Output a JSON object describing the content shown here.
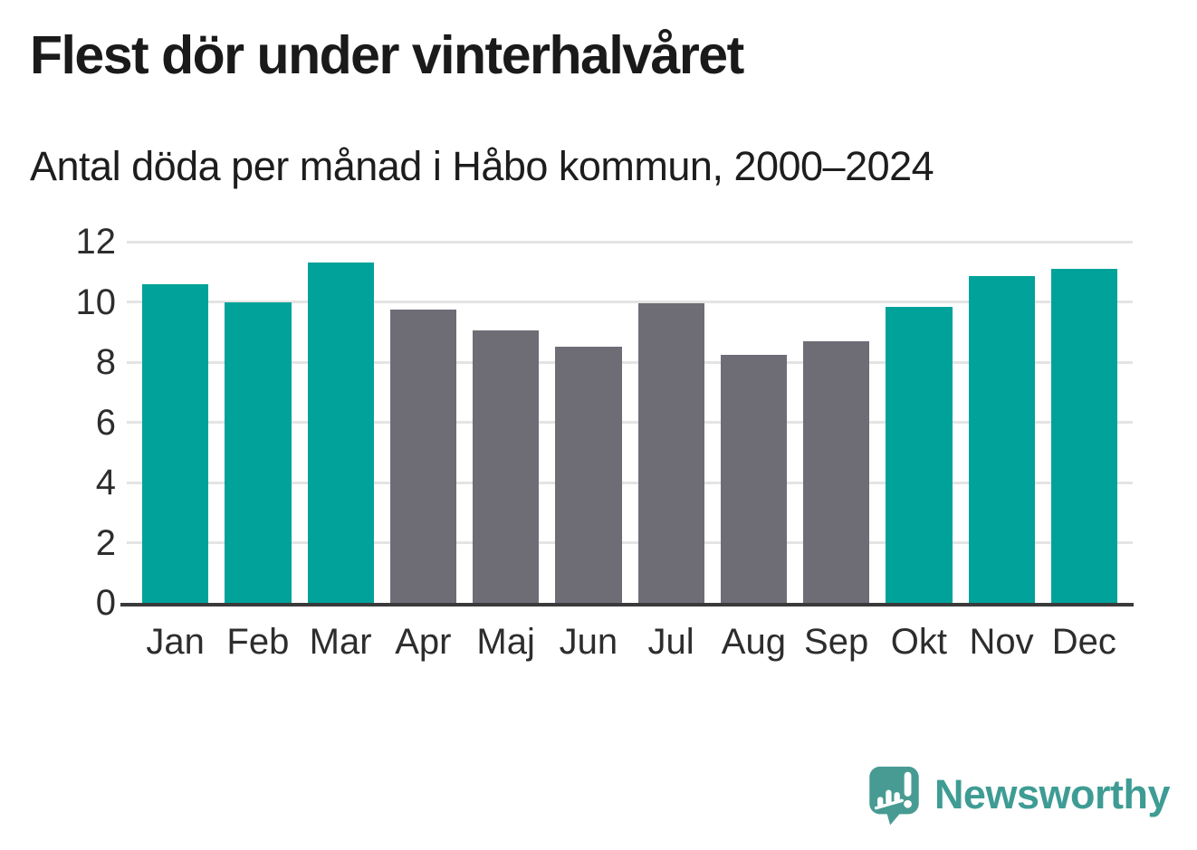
{
  "header": {
    "title": "Flest dör under vinterhalvåret",
    "subtitle": "Antal döda per månad i Håbo kommun, 2000–2024"
  },
  "chart_data": {
    "type": "bar",
    "title": "Flest dör under vinterhalvåret",
    "subtitle": "Antal döda per månad i Håbo kommun, 2000–2024",
    "categories": [
      "Jan",
      "Feb",
      "Mar",
      "Apr",
      "Maj",
      "Jun",
      "Jul",
      "Aug",
      "Sep",
      "Okt",
      "Nov",
      "Dec"
    ],
    "values": [
      10.6,
      10.0,
      11.3,
      9.75,
      9.05,
      8.5,
      9.95,
      8.25,
      8.7,
      9.85,
      10.85,
      11.1
    ],
    "bar_colors": [
      "winter",
      "winter",
      "winter",
      "summer",
      "summer",
      "summer",
      "summer",
      "summer",
      "summer",
      "winter",
      "winter",
      "winter"
    ],
    "palette": {
      "winter": "#00a29a",
      "summer": "#6e6d76"
    },
    "xlabel": "",
    "ylabel": "",
    "ylim": [
      0,
      12
    ],
    "yticks": [
      0,
      2,
      4,
      6,
      8,
      10,
      12
    ],
    "grid": "horizontal",
    "legend": "none"
  },
  "branding": {
    "name": "Newsworthy",
    "color": "#3e9c94",
    "icon_color": "#479b93",
    "icon": "newsworthy-speech-bubble-chart-icon"
  },
  "colors": {
    "background": "#ffffff",
    "axis_line": "#3a3a3a",
    "gridline": "#e4e4e4",
    "tick_text": "#2d2d2d",
    "title_text": "#1a1a1a"
  }
}
